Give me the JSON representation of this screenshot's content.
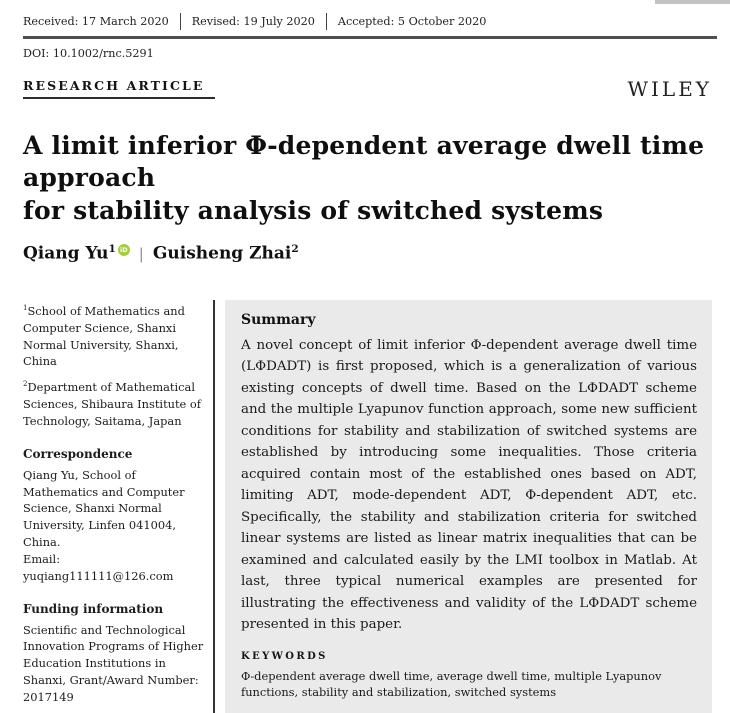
{
  "meta_bar": {
    "received": "Received: 17 March 2020",
    "revised": "Revised: 19 July 2020",
    "accepted": "Accepted: 5 October 2020",
    "doi": "DOI: 10.1002/rnc.5291"
  },
  "header": {
    "article_type": "RESEARCH ARTICLE",
    "publisher_logo": "WILEY"
  },
  "title": {
    "full": "A limit inferior Φ-dependent average dwell time approach for stability analysis of switched systems",
    "line1": "A limit inferior Φ-dependent average dwell time approach",
    "line2": "for stability analysis of switched systems"
  },
  "authors": {
    "first": {
      "name": "Qiang Yu",
      "affiliation_mark": "1"
    },
    "separator": "|",
    "second": {
      "name": "Guisheng Zhai",
      "affiliation_mark": "2"
    }
  },
  "icons": {
    "orcid": "iD"
  },
  "sidebar": {
    "affiliations": [
      {
        "mark": "1",
        "text": "School of Mathematics and Computer Science, Shanxi Normal University, Shanxi, China"
      },
      {
        "mark": "2",
        "text": "Department of Mathematical Sciences, Shibaura Institute of Technology, Saitama, Japan"
      }
    ],
    "correspondence": {
      "heading": "Correspondence",
      "body": "Qiang Yu, School of Mathematics and Computer Science, Shanxi Normal University, Linfen 041004, China.",
      "email": "Email: yuqiang111111@126.com"
    },
    "funding": {
      "heading": "Funding information",
      "body": "Scientific and Technological Innovation Programs of Higher Education Institutions in Shanxi, Grant/Award Number: 2017149"
    }
  },
  "summary": {
    "heading": "Summary",
    "body": "A novel concept of limit inferior Φ-dependent average dwell time (LΦDADT) is first proposed, which is a generalization of various existing concepts of dwell time. Based on the LΦDADT scheme and the multiple Lyapunov function approach, some new sufficient conditions for stability and stabilization of switched systems are established by introducing some inequalities. Those criteria acquired contain most of the established ones based on ADT, limiting ADT, mode-dependent ADT, Φ-dependent ADT, etc. Specifically, the stability and stabilization criteria for switched linear systems are listed as linear matrix inequalities that can be examined and calculated easily by the LMI toolbox in Matlab. At last, three typical numerical examples are presented for illustrating the effectiveness and validity of the LΦDADT scheme presented in this paper.",
    "keywords_heading": "KEYWORDS",
    "keywords": "Φ-dependent average dwell time, average dwell time, multiple Lyapunov functions, stability and stabilization, switched systems"
  },
  "colors": {
    "orcid_green": "#A6CE39",
    "summary_background": "#eaeaea",
    "rule": "#4f4f4f"
  }
}
